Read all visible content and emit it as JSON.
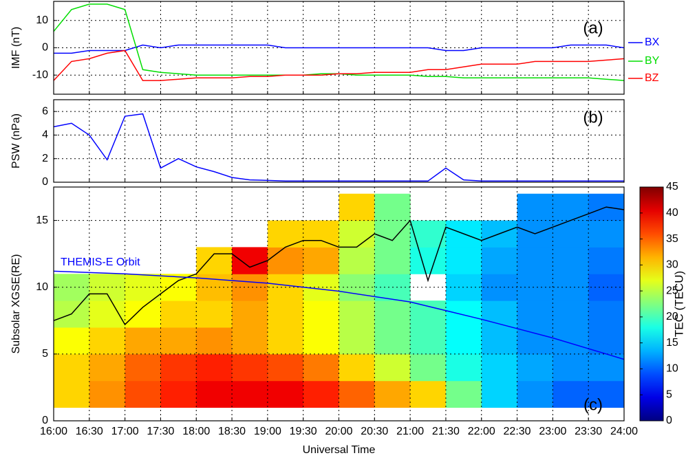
{
  "chart_data": [
    {
      "type": "line",
      "panel_label": "(a)",
      "ylabel": "IMF (nT)",
      "x": [
        16,
        16.25,
        16.5,
        16.75,
        17,
        17.25,
        17.5,
        17.75,
        18,
        18.25,
        18.5,
        18.75,
        19,
        19.25,
        19.5,
        19.75,
        20,
        20.25,
        20.5,
        20.75,
        21,
        21.25,
        21.5,
        21.75,
        22,
        22.25,
        22.5,
        22.75,
        23,
        23.25,
        23.5,
        23.75,
        24
      ],
      "series": [
        {
          "name": "BX",
          "color": "#0000ff",
          "values": [
            -2,
            -2,
            -1,
            -1,
            -1,
            1,
            0,
            1,
            1,
            1,
            1,
            1,
            1,
            0,
            0,
            0,
            0,
            0,
            0,
            0,
            0,
            0,
            -1,
            -1,
            0,
            0,
            0,
            0,
            0,
            1,
            1,
            1,
            0
          ]
        },
        {
          "name": "BY",
          "color": "#00dd00",
          "values": [
            6,
            14,
            16,
            16,
            14,
            -8,
            -9,
            -9.5,
            -10,
            -10,
            -10,
            -10,
            -10,
            -10,
            -10,
            -9.5,
            -9.5,
            -10,
            -10,
            -10,
            -10,
            -10.5,
            -10.5,
            -11,
            -11,
            -11,
            -11,
            -11,
            -11,
            -11,
            -11,
            -11.5,
            -12
          ]
        },
        {
          "name": "BZ",
          "color": "#ff0000",
          "values": [
            -12,
            -5,
            -4,
            -2,
            -1,
            -12,
            -12,
            -11.5,
            -11,
            -11,
            -11,
            -10.5,
            -10.5,
            -10,
            -10,
            -10,
            -9.5,
            -9.5,
            -9,
            -9,
            -9,
            -8,
            -8,
            -7,
            -6,
            -6,
            -6,
            -5,
            -5,
            -5,
            -5,
            -4.5,
            -4
          ]
        }
      ],
      "xlim": [
        16,
        24
      ],
      "xticks": [
        16,
        16.5,
        17,
        17.5,
        18,
        18.5,
        19,
        19.5,
        20,
        20.5,
        21,
        21.5,
        22,
        22.5,
        23,
        23.5,
        24
      ],
      "ylim": [
        -17,
        17
      ],
      "yticks": [
        -10,
        0,
        10
      ],
      "grid": true
    },
    {
      "type": "line",
      "panel_label": "(b)",
      "ylabel": "PSW (nPa)",
      "x": [
        16,
        16.25,
        16.5,
        16.75,
        17,
        17.25,
        17.5,
        17.75,
        18,
        18.25,
        18.5,
        18.75,
        19,
        19.25,
        19.5,
        19.75,
        20,
        20.25,
        20.5,
        20.75,
        21,
        21.25,
        21.5,
        21.75,
        22,
        22.25,
        22.5,
        22.75,
        23,
        23.25,
        23.5,
        23.75,
        24
      ],
      "series": [
        {
          "color": "#0000ff",
          "values": [
            4.7,
            5.0,
            4.0,
            1.9,
            5.6,
            5.8,
            1.2,
            2.0,
            1.3,
            0.9,
            0.4,
            0.2,
            0.15,
            0.1,
            0.1,
            0.1,
            0.1,
            0.1,
            0.1,
            0.1,
            0.1,
            0.1,
            1.2,
            0.2,
            0.1,
            0.1,
            0.1,
            0.1,
            0.1,
            0.1,
            0.1,
            0.1,
            0.1
          ]
        }
      ],
      "xlim": [
        16,
        24
      ],
      "xticks": [
        16,
        16.5,
        17,
        17.5,
        18,
        18.5,
        19,
        19.5,
        20,
        20.5,
        21,
        21.5,
        22,
        22.5,
        23,
        23.5,
        24
      ],
      "ylim": [
        0,
        7
      ],
      "yticks": [
        0,
        2,
        4,
        6
      ],
      "grid": true
    },
    {
      "type": "heatmap",
      "panel_label": "(c)",
      "ylabel": "Subsolar   XGSE(RE)",
      "xlabel": "Universal Time",
      "annotation": "THEMIS-E Orbit",
      "colorbar_label": "TEC (TECU)",
      "colormap": "jet",
      "xbins": [
        16,
        16.5,
        17,
        17.5,
        18,
        18.5,
        19,
        19.5,
        20,
        20.5,
        21,
        21.5,
        22,
        22.5,
        23,
        23.5,
        24
      ],
      "ybins": [
        1,
        3,
        5,
        7,
        9,
        11,
        13,
        15,
        17
      ],
      "z": [
        [
          30,
          33,
          36,
          38,
          40,
          40,
          40,
          38,
          35,
          32,
          30,
          22,
          15,
          12,
          10,
          10
        ],
        [
          30,
          32,
          35,
          37,
          38,
          37,
          36,
          34,
          30,
          26,
          22,
          18,
          15,
          13,
          12,
          12
        ],
        [
          28,
          30,
          32,
          32,
          33,
          32,
          30,
          28,
          25,
          22,
          20,
          17,
          14,
          12,
          12,
          11
        ],
        [
          25,
          27,
          28,
          30,
          30,
          32,
          30,
          28,
          25,
          22,
          20,
          17,
          14,
          12,
          12,
          11
        ],
        [
          24,
          26,
          27,
          28,
          31,
          33,
          30,
          27,
          23,
          20,
          null,
          15,
          12,
          12,
          12,
          10
        ],
        [
          null,
          null,
          null,
          null,
          30,
          40,
          33,
          32,
          25,
          22,
          18,
          16,
          13,
          12,
          12,
          11
        ],
        [
          null,
          null,
          null,
          null,
          null,
          null,
          30,
          30,
          26,
          22,
          19,
          16,
          14,
          12,
          12,
          12
        ],
        [
          null,
          null,
          null,
          null,
          null,
          null,
          null,
          null,
          30,
          22,
          null,
          null,
          null,
          12,
          12,
          11
        ]
      ],
      "clim": [
        0,
        45
      ],
      "cticks": [
        0,
        5,
        10,
        15,
        20,
        25,
        30,
        35,
        40,
        45
      ],
      "x": [
        16,
        16.25,
        16.5,
        16.75,
        17,
        17.25,
        17.5,
        17.75,
        18,
        18.25,
        18.5,
        18.75,
        19,
        19.25,
        19.5,
        19.75,
        20,
        20.25,
        20.5,
        20.75,
        21,
        21.25,
        21.5,
        21.75,
        22,
        22.25,
        22.5,
        22.75,
        23,
        23.25,
        23.5,
        23.75,
        24
      ],
      "series": [
        {
          "color": "#000000",
          "values": [
            7.5,
            8,
            9.5,
            9.5,
            7.2,
            8.5,
            9.5,
            10.5,
            11,
            12.5,
            12.5,
            11.5,
            12,
            13,
            13.5,
            13.5,
            13,
            13,
            14,
            13.5,
            15,
            10.5,
            14.5,
            14,
            13.5,
            14,
            14.5,
            14,
            14.5,
            15,
            15.5,
            16,
            15.8
          ]
        },
        {
          "color": "#0000ff",
          "x": [
            16,
            17,
            18,
            19,
            20,
            21,
            22,
            23,
            24
          ],
          "values": [
            11.2,
            11.0,
            10.7,
            10.3,
            9.7,
            8.9,
            7.6,
            6.2,
            4.6
          ]
        }
      ],
      "xlim": [
        16,
        24
      ],
      "xticks": [
        {
          "value": 16,
          "label": "16:00"
        },
        {
          "value": 16.5,
          "label": "16:30"
        },
        {
          "value": 17,
          "label": "17:00"
        },
        {
          "value": 17.5,
          "label": "17:30"
        },
        {
          "value": 18,
          "label": "18:00"
        },
        {
          "value": 18.5,
          "label": "18:30"
        },
        {
          "value": 19,
          "label": "19:00"
        },
        {
          "value": 19.5,
          "label": "19:30"
        },
        {
          "value": 20,
          "label": "20:00"
        },
        {
          "value": 20.5,
          "label": "20:30"
        },
        {
          "value": 21,
          "label": "21:00"
        },
        {
          "value": 21.5,
          "label": "21:30"
        },
        {
          "value": 22,
          "label": "22:00"
        },
        {
          "value": 22.5,
          "label": "22:30"
        },
        {
          "value": 23,
          "label": "23:00"
        },
        {
          "value": 23.5,
          "label": "23:30"
        },
        {
          "value": 24,
          "label": "24:00"
        }
      ],
      "ylim": [
        0,
        17.5
      ],
      "yticks": [
        0,
        5,
        10,
        15
      ],
      "grid": true
    }
  ]
}
